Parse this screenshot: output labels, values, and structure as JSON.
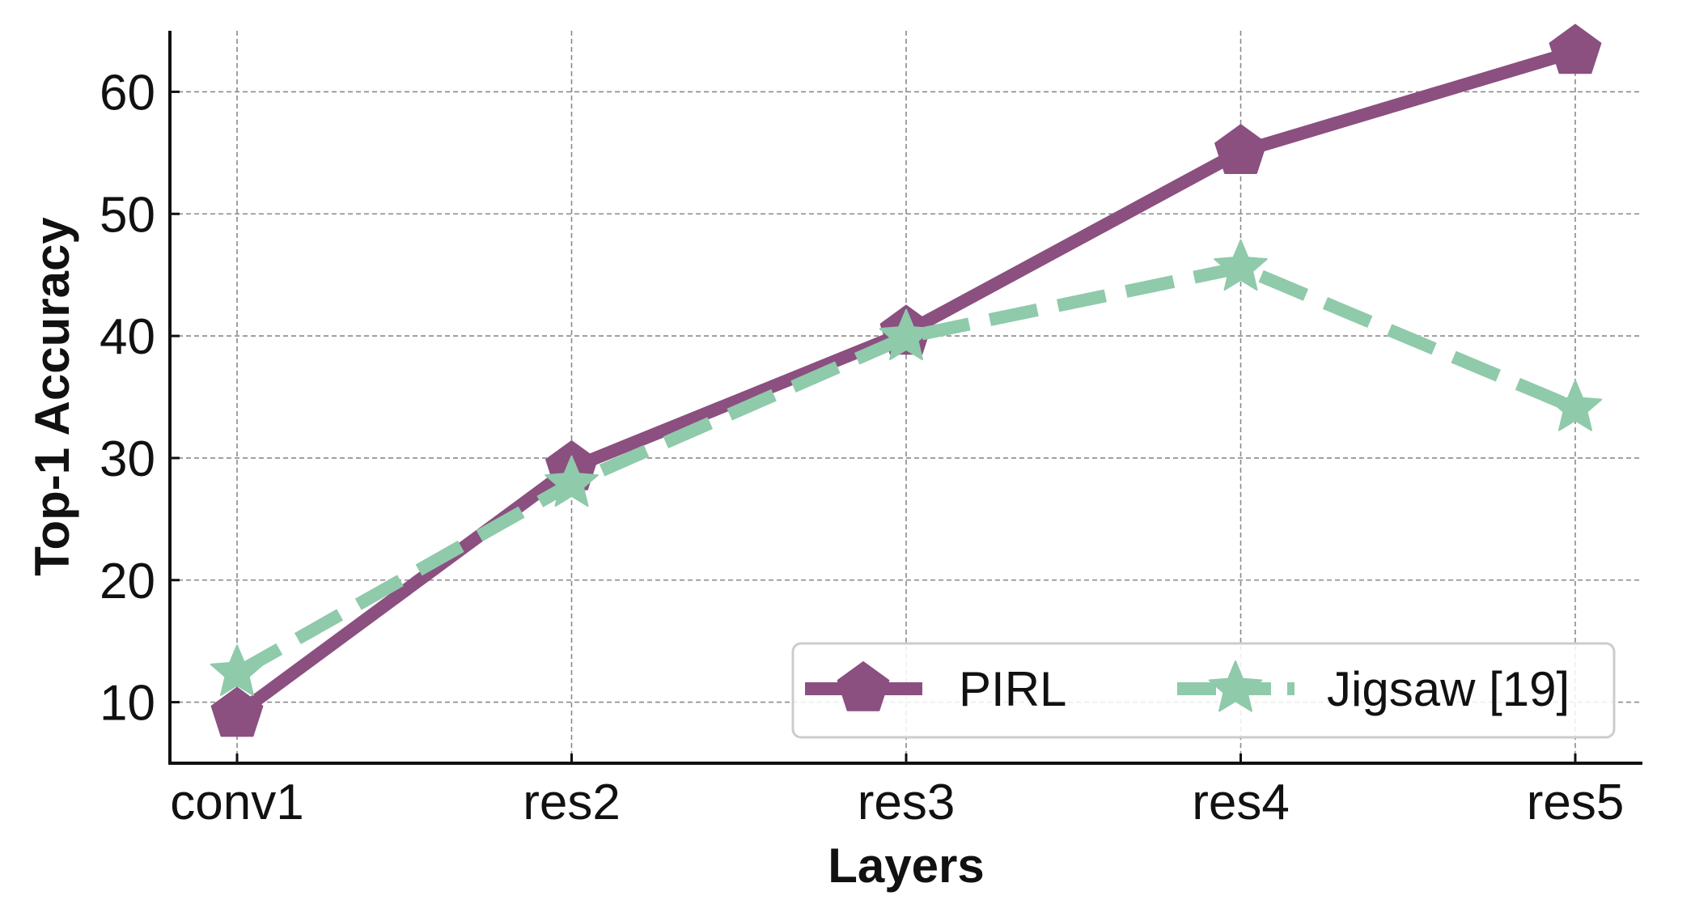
{
  "chart_data": {
    "type": "line",
    "categories": [
      "conv1",
      "res2",
      "res3",
      "res4",
      "res5"
    ],
    "xlabel": "Layers",
    "ylabel": "Top-1 Accuracy",
    "ylim": [
      5,
      65
    ],
    "yticks": [
      10,
      20,
      30,
      40,
      50,
      60
    ],
    "grid": true,
    "legend_position": "bottom-right",
    "series": [
      {
        "name": "PIRL",
        "values": [
          9.0,
          29.2,
          40.3,
          55.1,
          63.3
        ],
        "color": "#8B4F80",
        "line_style": "solid",
        "marker": "pentagon"
      },
      {
        "name": "Jigsaw [19]",
        "values": [
          12.4,
          27.9,
          39.9,
          45.6,
          34.1
        ],
        "color": "#8FCAAA",
        "line_style": "dashed",
        "marker": "star"
      }
    ]
  }
}
